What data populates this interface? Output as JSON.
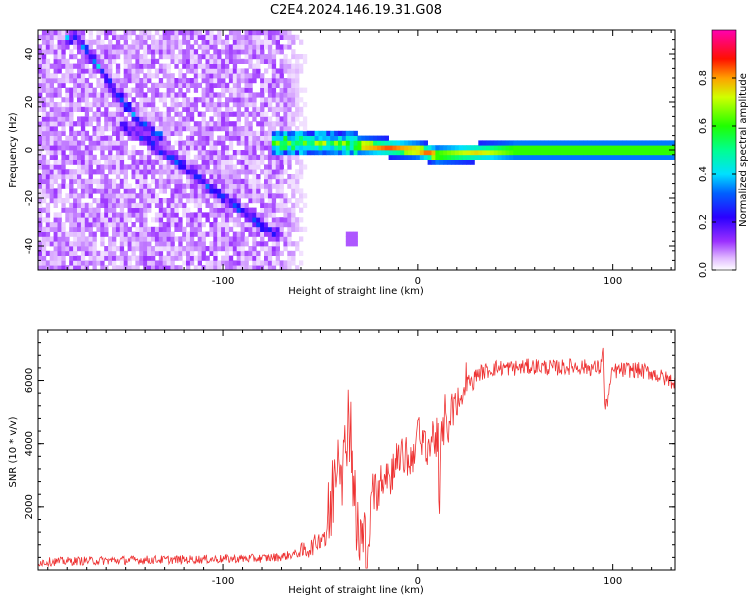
{
  "figure": {
    "title": "C2E4.2024.146.19.31.G08"
  },
  "chart_data": [
    {
      "type": "heatmap",
      "xlabel": "Height of straight line (km)",
      "ylabel": "Frequency (Hz)",
      "xlim": [
        -195,
        132
      ],
      "ylim": [
        -50,
        50
      ],
      "xticks": [
        -100,
        0,
        100
      ],
      "xtick_labels": [
        "-100",
        "0",
        "100"
      ],
      "yticks": [
        -40,
        -20,
        0,
        20,
        40
      ],
      "ytick_labels": [
        "-40",
        "-20",
        "0",
        "20",
        "40"
      ],
      "colorbar": {
        "label": "Normalized spectral amplitude",
        "range": [
          0,
          1
        ],
        "ticks": [
          0,
          0.2,
          0.4,
          0.6,
          0.8
        ],
        "tick_labels": [
          "0.0",
          "0.2",
          "0.4",
          "0.6",
          "0.8"
        ],
        "colormap": "white-purple-blue-cyan-green-yellow-red-magenta"
      },
      "features": [
        {
          "name": "descending streak A",
          "x": [
            -175,
            -165,
            -155,
            -145,
            -135
          ],
          "y": [
            47,
            36,
            24,
            14,
            6
          ],
          "amplitude": 0.3
        },
        {
          "name": "descending streak B",
          "x": [
            -150,
            -135,
            -115,
            -100,
            -85,
            -75
          ],
          "y": [
            10,
            2,
            -10,
            -20,
            -28,
            -35
          ],
          "amplitude": 0.25
        },
        {
          "name": "near-zero band",
          "x": [
            -75,
            -50,
            -30,
            0,
            10,
            50,
            100,
            132
          ],
          "y": [
            3,
            3,
            2,
            0,
            -2,
            0,
            0,
            0
          ],
          "amplitude": 0.8
        },
        {
          "name": "isolated patch",
          "x": [
            -34
          ],
          "y": [
            -37
          ],
          "amplitude": 0.1
        }
      ],
      "grid": false
    },
    {
      "type": "line",
      "xlabel": "Height of straight line (km)",
      "ylabel": "SNR (10 * v/v)",
      "xlim": [
        -195,
        132
      ],
      "ylim": [
        0,
        7600
      ],
      "xticks": [
        -100,
        0,
        100
      ],
      "xtick_labels": [
        "-100",
        "0",
        "100"
      ],
      "yticks": [
        2000,
        4000,
        6000
      ],
      "ytick_labels": [
        "2000",
        "4000",
        "6000"
      ],
      "series": [
        {
          "color": "#ee3333",
          "x": [
            -195,
            -180,
            -160,
            -140,
            -120,
            -100,
            -80,
            -70,
            -60,
            -55,
            -50,
            -46,
            -44,
            -42,
            -40,
            -38,
            -36,
            -34,
            -32,
            -30,
            -28,
            -26,
            -24,
            -22,
            -20,
            -18,
            -16,
            -14,
            -12,
            -10,
            -8,
            -6,
            -4,
            -2,
            0,
            2,
            4,
            6,
            8,
            10,
            11,
            12,
            14,
            16,
            18,
            20,
            22,
            24,
            26,
            28,
            30,
            35,
            40,
            50,
            60,
            70,
            80,
            90,
            94,
            95,
            96,
            100,
            110,
            120,
            125,
            132
          ],
          "y": [
            250,
            280,
            300,
            320,
            330,
            350,
            370,
            420,
            550,
            700,
            1000,
            1400,
            2200,
            3800,
            4200,
            3000,
            5200,
            4200,
            1500,
            1000,
            800,
            600,
            1800,
            2500,
            2600,
            3000,
            3200,
            2800,
            3600,
            3400,
            3500,
            3700,
            3300,
            3900,
            4400,
            3800,
            4100,
            3900,
            4300,
            4100,
            1800,
            4000,
            4900,
            4600,
            5100,
            5000,
            5400,
            5600,
            6000,
            5900,
            6200,
            6300,
            6400,
            6400,
            6450,
            6400,
            6450,
            6400,
            6400,
            7200,
            5000,
            6300,
            6350,
            6250,
            6100,
            5950
          ]
        }
      ],
      "grid": false
    }
  ]
}
